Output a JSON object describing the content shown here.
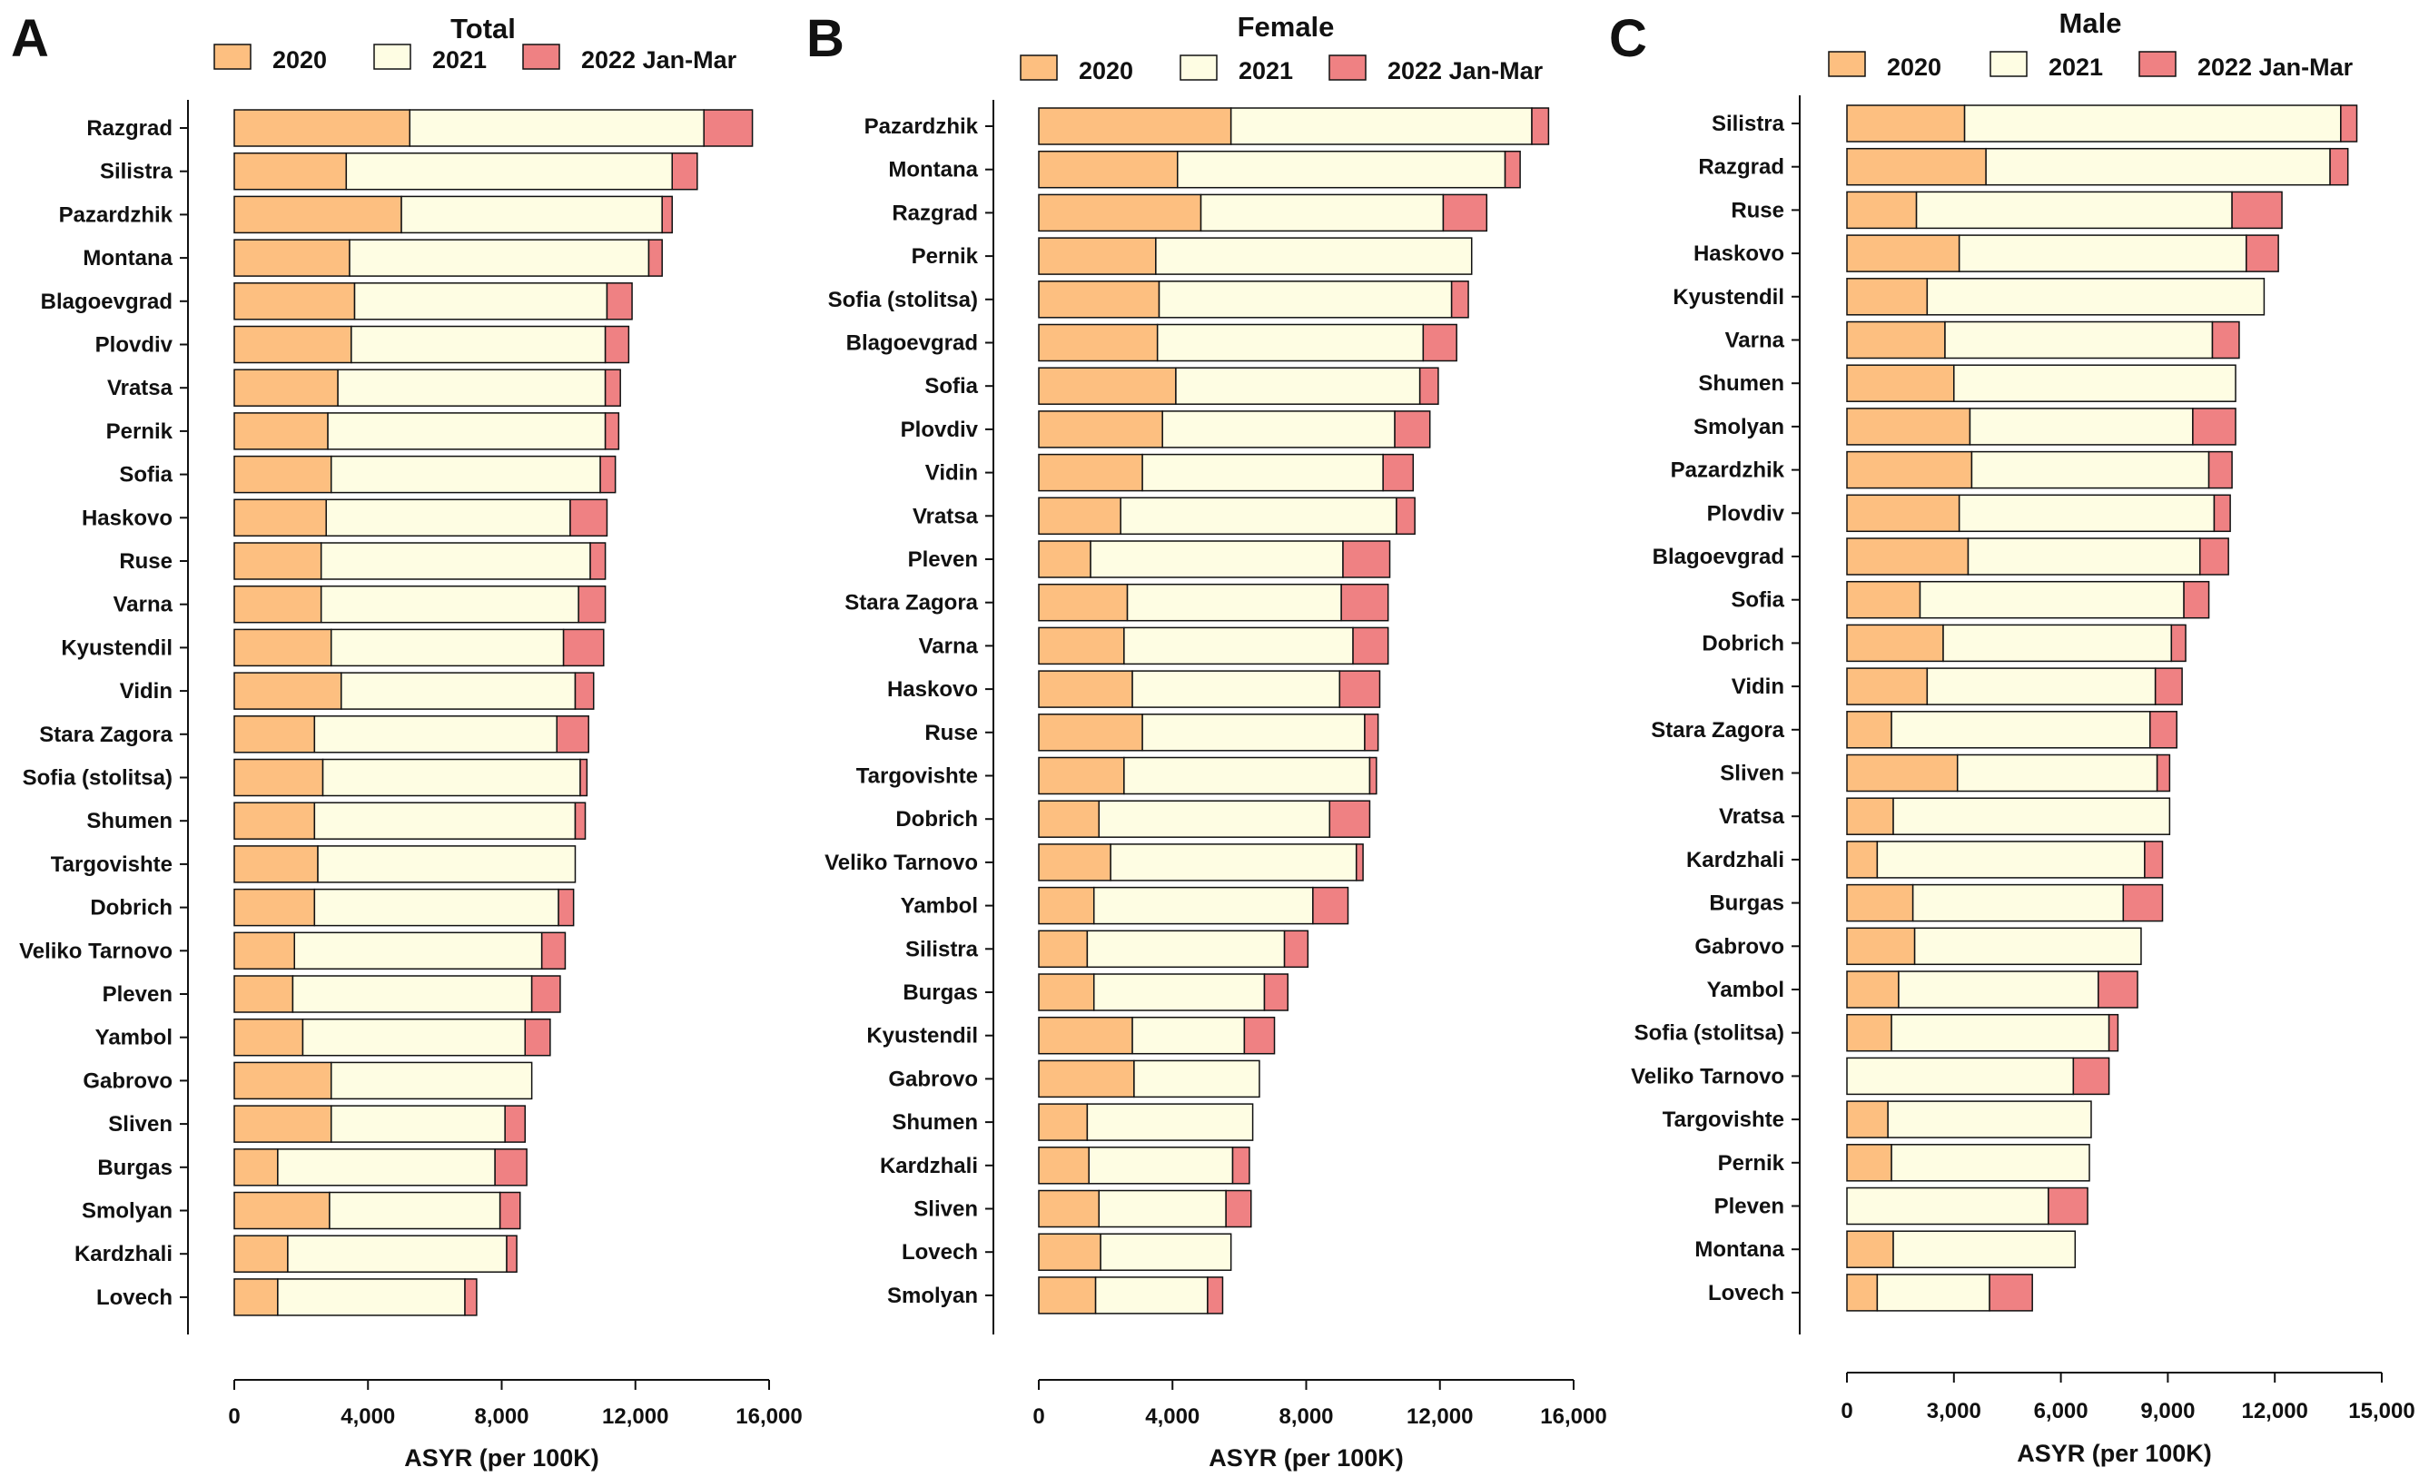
{
  "chart_data": [
    {
      "type": "bar",
      "orientation": "horizontal",
      "stacked": true,
      "panel_label": "A",
      "title": "Total",
      "xlabel": "ASYR (per 100K)",
      "ylabel": "",
      "xlim": [
        0,
        16000
      ],
      "xticks": [
        0,
        4000,
        8000,
        12000,
        16000
      ],
      "xtick_labels": [
        "0",
        "4,000",
        "8,000",
        "12,000",
        "16,000"
      ],
      "legend": {
        "position": "top",
        "entries": [
          "2020",
          "2021",
          "2022 Jan-Mar"
        ]
      },
      "grid": false,
      "colors": {
        "2020": "#fdbf80",
        "2021": "#fefde3",
        "2022 Jan-Mar": "#ef8183"
      },
      "categories": [
        "Razgrad",
        "Silistra",
        "Pazardzhik",
        "Montana",
        "Blagoevgrad",
        "Plovdiv",
        "Vratsa",
        "Pernik",
        "Sofia",
        "Haskovo",
        "Ruse",
        "Varna",
        "Kyustendil",
        "Vidin",
        "Stara Zagora",
        "Sofia (stolitsa)",
        "Shumen",
        "Targovishte",
        "Dobrich",
        "Veliko Tarnovo",
        "Pleven",
        "Yambol",
        "Gabrovo",
        "Sliven",
        "Burgas",
        "Smolyan",
        "Kardzhali",
        "Lovech"
      ],
      "series": [
        {
          "name": "2020",
          "values": [
            5250,
            3350,
            5000,
            3450,
            3600,
            3500,
            3100,
            2800,
            2900,
            2750,
            2600,
            2600,
            2900,
            3200,
            2400,
            2650,
            2400,
            2500,
            2400,
            1800,
            1750,
            2050,
            2900,
            2900,
            1300,
            2850,
            1600,
            1300
          ]
        },
        {
          "name": "2021",
          "values": [
            8800,
            9750,
            7800,
            8950,
            7550,
            7600,
            8000,
            8300,
            8050,
            7300,
            8050,
            7700,
            6950,
            7000,
            7250,
            7700,
            7800,
            7700,
            7300,
            7400,
            7150,
            6650,
            6000,
            5200,
            6500,
            5100,
            6550,
            5600
          ]
        },
        {
          "name": "2022 Jan-Mar",
          "values": [
            1450,
            750,
            300,
            400,
            750,
            700,
            450,
            400,
            450,
            1100,
            450,
            800,
            1200,
            550,
            950,
            200,
            300,
            0,
            450,
            700,
            850,
            750,
            0,
            600,
            950,
            600,
            300,
            350
          ]
        }
      ]
    },
    {
      "type": "bar",
      "orientation": "horizontal",
      "stacked": true,
      "panel_label": "B",
      "title": "Female",
      "xlabel": "ASYR (per 100K)",
      "ylabel": "",
      "xlim": [
        0,
        16000
      ],
      "xticks": [
        0,
        4000,
        8000,
        12000,
        16000
      ],
      "xtick_labels": [
        "0",
        "4,000",
        "8,000",
        "12,000",
        "16,000"
      ],
      "legend": {
        "position": "top",
        "entries": [
          "2020",
          "2021",
          "2022 Jan-Mar"
        ]
      },
      "grid": false,
      "colors": {
        "2020": "#fdbf80",
        "2021": "#fefde3",
        "2022 Jan-Mar": "#ef8183"
      },
      "categories": [
        "Pazardzhik",
        "Montana",
        "Razgrad",
        "Pernik",
        "Sofia (stolitsa)",
        "Blagoevgrad",
        "Sofia",
        "Plovdiv",
        "Vidin",
        "Vratsa",
        "Pleven",
        "Stara Zagora",
        "Varna",
        "Haskovo",
        "Ruse",
        "Targovishte",
        "Dobrich",
        "Veliko Tarnovo",
        "Yambol",
        "Silistra",
        "Burgas",
        "Kyustendil",
        "Gabrovo",
        "Shumen",
        "Kardzhali",
        "Sliven",
        "Lovech",
        "Smolyan"
      ],
      "series": [
        {
          "name": "2020",
          "values": [
            5750,
            4150,
            4850,
            3500,
            3600,
            3550,
            4100,
            3700,
            3100,
            2450,
            1550,
            2650,
            2550,
            2800,
            3100,
            2550,
            1800,
            2150,
            1650,
            1450,
            1650,
            2800,
            2850,
            1450,
            1500,
            1800,
            1850,
            1700
          ]
        },
        {
          "name": "2021",
          "values": [
            9000,
            9800,
            7250,
            9450,
            8750,
            7950,
            7300,
            6950,
            7200,
            8250,
            7550,
            6400,
            6850,
            6200,
            6650,
            7350,
            6900,
            7350,
            6550,
            5900,
            5100,
            3350,
            3750,
            4950,
            4300,
            3800,
            3900,
            3350
          ]
        },
        {
          "name": "2022 Jan-Mar",
          "values": [
            500,
            450,
            1300,
            0,
            500,
            1000,
            550,
            1050,
            900,
            550,
            1400,
            1400,
            1050,
            1200,
            400,
            200,
            1200,
            200,
            1050,
            700,
            700,
            900,
            0,
            0,
            500,
            750,
            0,
            450
          ]
        }
      ]
    },
    {
      "type": "bar",
      "orientation": "horizontal",
      "stacked": true,
      "panel_label": "C",
      "title": "Male",
      "xlabel": "ASYR (per 100K)",
      "ylabel": "",
      "xlim": [
        0,
        15000
      ],
      "xticks": [
        0,
        3000,
        6000,
        9000,
        12000,
        15000
      ],
      "xtick_labels": [
        "0",
        "3,000",
        "6,000",
        "9,000",
        "12,000",
        "15,000"
      ],
      "legend": {
        "position": "top",
        "entries": [
          "2020",
          "2021",
          "2022 Jan-Mar"
        ]
      },
      "grid": false,
      "colors": {
        "2020": "#fdbf80",
        "2021": "#fefde3",
        "2022 Jan-Mar": "#ef8183"
      },
      "categories": [
        "Silistra",
        "Razgrad",
        "Ruse",
        "Haskovo",
        "Kyustendil",
        "Varna",
        "Shumen",
        "Smolyan",
        "Pazardzhik",
        "Plovdiv",
        "Blagoevgrad",
        "Sofia",
        "Dobrich",
        "Vidin",
        "Stara Zagora",
        "Sliven",
        "Vratsa",
        "Kardzhali",
        "Burgas",
        "Gabrovo",
        "Yambol",
        "Sofia (stolitsa)",
        "Veliko Tarnovo",
        "Targovishte",
        "Pernik",
        "Pleven",
        "Montana",
        "Lovech"
      ],
      "series": [
        {
          "name": "2020",
          "values": [
            3300,
            3900,
            1950,
            3150,
            2250,
            2750,
            3000,
            3450,
            3500,
            3150,
            3400,
            2050,
            2700,
            2250,
            1250,
            3100,
            1300,
            850,
            1850,
            1900,
            1450,
            1250,
            0,
            1150,
            1250,
            0,
            1300,
            850
          ]
        },
        {
          "name": "2021",
          "values": [
            10550,
            9650,
            8850,
            8050,
            9450,
            7500,
            7900,
            6250,
            6650,
            7150,
            6500,
            7400,
            6400,
            6400,
            7250,
            5600,
            7750,
            7500,
            5900,
            6350,
            5600,
            6100,
            6350,
            5700,
            5550,
            5650,
            5100,
            3150
          ]
        },
        {
          "name": "2022 Jan-Mar",
          "values": [
            450,
            500,
            1400,
            900,
            0,
            750,
            0,
            1200,
            650,
            450,
            800,
            700,
            400,
            750,
            750,
            350,
            0,
            500,
            1100,
            0,
            1100,
            250,
            1000,
            0,
            0,
            1100,
            0,
            1200
          ]
        }
      ]
    }
  ]
}
